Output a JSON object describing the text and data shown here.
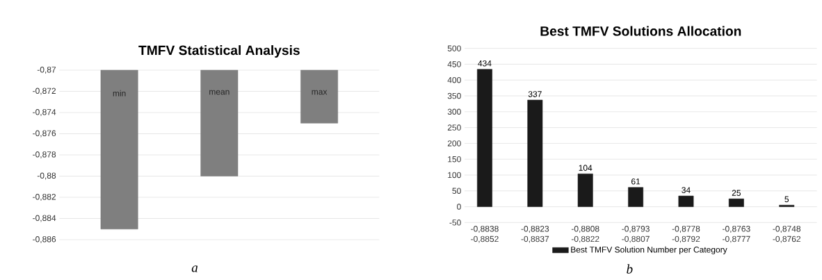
{
  "chart_data": [
    {
      "type": "bar",
      "title": "TMFV Statistical Analysis",
      "categories": [
        "min",
        "mean",
        "max"
      ],
      "values": [
        -0.885,
        -0.88,
        -0.875
      ],
      "color": "#7f7f7f",
      "ylim": [
        -0.886,
        -0.87
      ],
      "yticks": [
        {
          "value": -0.886,
          "label": "-0,886"
        },
        {
          "value": -0.884,
          "label": "-0,884"
        },
        {
          "value": -0.882,
          "label": "-0,882"
        },
        {
          "value": -0.88,
          "label": "-0,88"
        },
        {
          "value": -0.878,
          "label": "-0,878"
        },
        {
          "value": -0.876,
          "label": "-0,876"
        },
        {
          "value": -0.874,
          "label": "-0,874"
        },
        {
          "value": -0.872,
          "label": "-0,872"
        },
        {
          "value": -0.87,
          "label": "-0,87"
        }
      ],
      "grid": "y",
      "tick_labels": "y",
      "legend": false,
      "annotations": [
        "a"
      ]
    },
    {
      "type": "bar",
      "title": "Best TMFV Solutions Allocation",
      "categories": [
        "-0,8838 -0,8852",
        "-0,8823 -0,8837",
        "-0,8808 -0,8822",
        "-0,8793 -0,8807",
        "-0,8778 -0,8792",
        "-0,8763 -0,8777",
        "-0,8748 -0,8762"
      ],
      "series": [
        {
          "name": "Best TMFV Solution Number per Category",
          "color": "#1a1a1a",
          "values": [
            434,
            337,
            104,
            61,
            34,
            25,
            5
          ]
        }
      ],
      "ylim": [
        -50,
        500
      ],
      "yticks": [
        -50,
        0,
        50,
        100,
        150,
        200,
        250,
        300,
        350,
        400,
        450,
        500
      ],
      "grid": "y",
      "data_labels": true,
      "legend": "bottom",
      "annotations": [
        "b"
      ]
    }
  ]
}
